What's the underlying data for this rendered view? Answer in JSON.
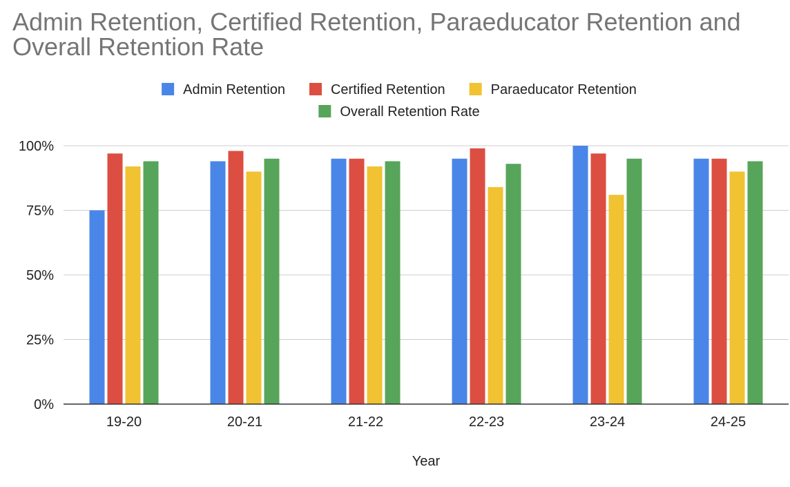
{
  "chart_data": {
    "type": "bar",
    "title": "Admin Retention, Certified Retention, Paraeducator Retention and Overall Retention Rate",
    "xlabel": "Year",
    "ylabel": "",
    "categories": [
      "19-20",
      "20-21",
      "21-22",
      "22-23",
      "23-24",
      "24-25"
    ],
    "series": [
      {
        "name": "Admin Retention",
        "color": "#4a86e8",
        "values": [
          0.75,
          0.94,
          0.95,
          0.95,
          1.0,
          0.95
        ]
      },
      {
        "name": "Certified Retention",
        "color": "#dc4e41",
        "values": [
          0.97,
          0.98,
          0.95,
          0.99,
          0.97,
          0.95
        ]
      },
      {
        "name": "Paraeducator Retention",
        "color": "#f1c232",
        "values": [
          0.92,
          0.9,
          0.92,
          0.84,
          0.81,
          0.9
        ]
      },
      {
        "name": "Overall Retention Rate",
        "color": "#57a55a",
        "values": [
          0.94,
          0.95,
          0.94,
          0.93,
          0.95,
          0.94
        ]
      }
    ],
    "ylim": [
      0,
      1
    ],
    "y_ticks": [
      {
        "value": 0,
        "label": "0%"
      },
      {
        "value": 0.25,
        "label": "25%"
      },
      {
        "value": 0.5,
        "label": "50%"
      },
      {
        "value": 0.75,
        "label": "75%"
      },
      {
        "value": 1,
        "label": "100%"
      }
    ],
    "grid": true,
    "legend_position": "top"
  }
}
